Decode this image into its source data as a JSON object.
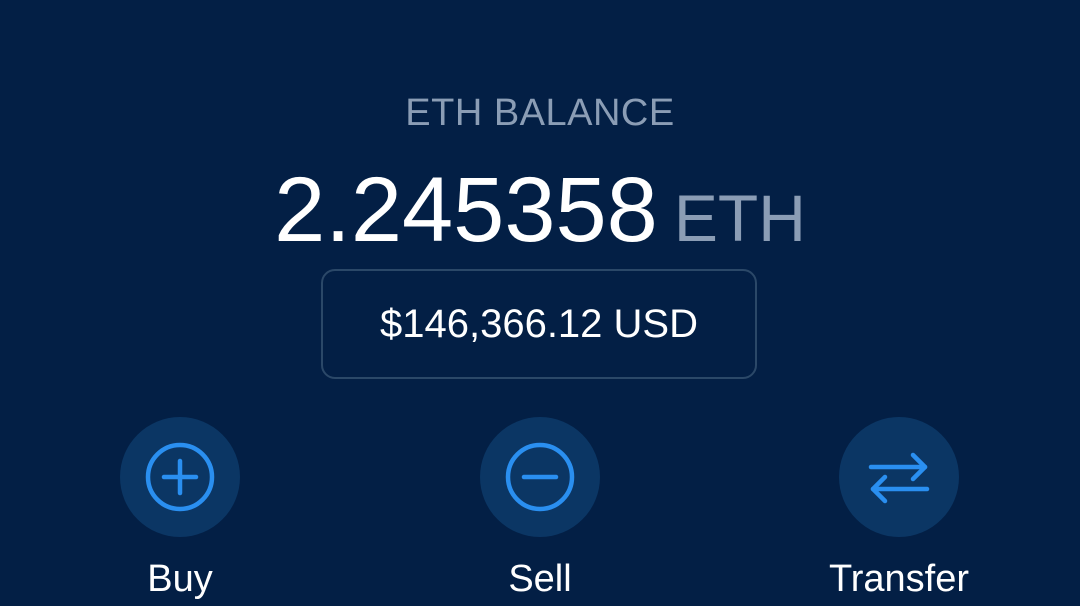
{
  "balance": {
    "label": "ETH BALANCE",
    "amount": "2.245358",
    "unit": "ETH",
    "fiat": "$146,366.12 USD"
  },
  "actions": [
    {
      "label": "Buy",
      "icon": "plus-circle-icon"
    },
    {
      "label": "Sell",
      "icon": "minus-circle-icon"
    },
    {
      "label": "Transfer",
      "icon": "swap-arrows-icon"
    }
  ],
  "colors": {
    "background": "#031f45",
    "accent": "#2a8ff0",
    "muted_text": "#8b9db5",
    "button_fill": "#0b3664"
  }
}
